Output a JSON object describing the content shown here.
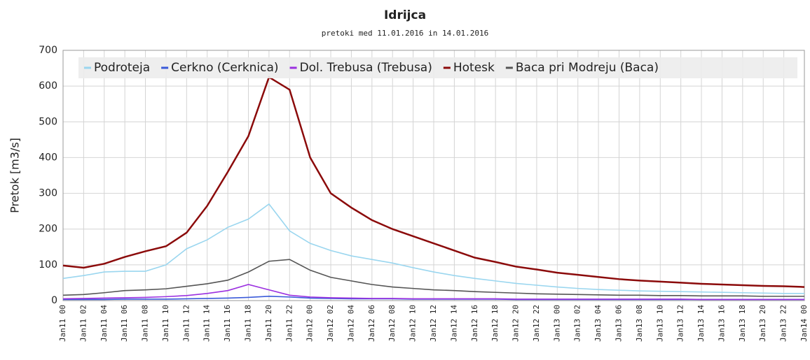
{
  "chart_data": {
    "type": "line",
    "title": "Idrijca",
    "subtitle": "pretoki med 11.01.2016 in 14.01.2016",
    "y_label": "Pretok [m3/s]",
    "categories": [
      "Jan11 00",
      "Jan11 02",
      "Jan11 04",
      "Jan11 06",
      "Jan11 08",
      "Jan11 10",
      "Jan11 12",
      "Jan11 14",
      "Jan11 16",
      "Jan11 18",
      "Jan11 20",
      "Jan11 22",
      "Jan12 00",
      "Jan12 02",
      "Jan12 04",
      "Jan12 06",
      "Jan12 08",
      "Jan12 10",
      "Jan12 12",
      "Jan12 14",
      "Jan12 16",
      "Jan12 18",
      "Jan12 20",
      "Jan12 22",
      "Jan13 00",
      "Jan13 02",
      "Jan13 04",
      "Jan13 06",
      "Jan13 08",
      "Jan13 10",
      "Jan13 12",
      "Jan13 14",
      "Jan13 16",
      "Jan13 18",
      "Jan13 20",
      "Jan13 22",
      "Jan14 00"
    ],
    "series": [
      {
        "name": "Podroteja",
        "color": "#9ad6ef",
        "values": [
          62,
          70,
          80,
          82,
          82,
          100,
          145,
          170,
          205,
          228,
          270,
          195,
          160,
          140,
          125,
          115,
          105,
          92,
          80,
          70,
          62,
          55,
          48,
          43,
          38,
          34,
          31,
          29,
          27,
          26,
          25,
          24,
          23,
          22,
          21,
          20,
          20
        ]
      },
      {
        "name": "Cerkno (Cerknica)",
        "color": "#3a5ad9",
        "values": [
          3,
          3,
          3,
          4,
          4,
          4,
          5,
          6,
          7,
          9,
          12,
          10,
          7,
          6,
          5,
          5,
          5,
          4,
          4,
          4,
          4,
          4,
          3,
          3,
          3,
          3,
          3,
          3,
          3,
          3,
          3,
          3,
          3,
          3,
          3,
          3,
          3
        ]
      },
      {
        "name": "Dol. Trebusa (Trebusa)",
        "color": "#9b30e0",
        "values": [
          5,
          6,
          7,
          8,
          9,
          11,
          14,
          20,
          28,
          45,
          30,
          15,
          10,
          8,
          7,
          6,
          6,
          5,
          5,
          5,
          5,
          5,
          4,
          4,
          4,
          4,
          4,
          4,
          4,
          4,
          4,
          3,
          3,
          3,
          3,
          3,
          3
        ]
      },
      {
        "name": "Hotesk",
        "color": "#8b0a0a",
        "values": [
          98,
          92,
          103,
          122,
          138,
          152,
          190,
          265,
          360,
          460,
          625,
          590,
          400,
          300,
          260,
          225,
          200,
          180,
          160,
          140,
          120,
          108,
          95,
          87,
          78,
          72,
          66,
          60,
          56,
          53,
          50,
          47,
          45,
          43,
          41,
          40,
          38
        ]
      },
      {
        "name": "Baca pri Modreju (Baca)",
        "color": "#555555",
        "values": [
          15,
          17,
          22,
          28,
          30,
          33,
          40,
          47,
          57,
          80,
          110,
          115,
          85,
          65,
          55,
          45,
          38,
          34,
          30,
          28,
          25,
          23,
          21,
          19,
          18,
          17,
          16,
          15,
          15,
          14,
          14,
          13,
          13,
          13,
          12,
          12,
          12
        ]
      }
    ],
    "ylim": [
      0,
      700
    ],
    "yticks": [
      0,
      100,
      200,
      300,
      400,
      500,
      600,
      700
    ],
    "grid": true
  }
}
